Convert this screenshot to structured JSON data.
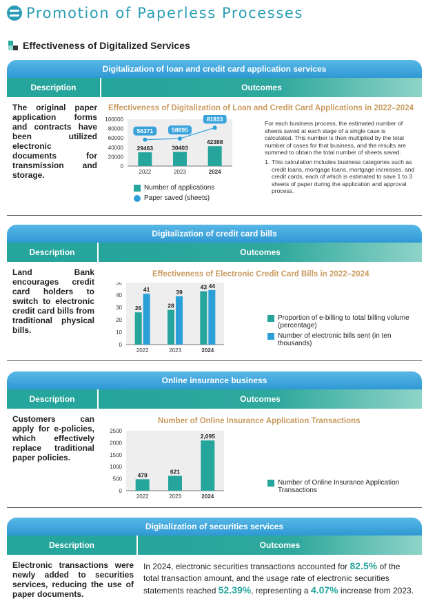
{
  "page": {
    "title": "Promotion of Paperless Processes",
    "section_heading": "Effectiveness of Digitalized Services"
  },
  "colors": {
    "teal": "#26a59c",
    "blue": "#2a9fd8",
    "tan": "#c99a5e",
    "cap_blue": "#3aa3dc"
  },
  "panels": [
    {
      "title": "Digitalization of loan and credit card application services",
      "desc_header": "Description",
      "out_header": "Outcomes",
      "description": "The original paper application forms and contracts have been utilized electronic documents for transmission and storage."
    },
    {
      "title": "Digitalization of credit card bills",
      "desc_header": "Description",
      "out_header": "Outcomes",
      "description": "Land Bank encourages credit card holders to switch to electronic credit card bills from traditional physical bills."
    },
    {
      "title": "Online insurance business",
      "desc_header": "Description",
      "out_header": "Outcomes",
      "description": "Customers can apply for e-policies, which effectively replace traditional paper policies."
    },
    {
      "title": "Digitalization of securities services",
      "desc_header": "Description",
      "out_header": "Outcomes",
      "description": "Electronic transactions were newly added to securities services, reducing the use of paper documents.",
      "outcome_parts": {
        "p1": "In 2024, electronic securities transactions accounted for ",
        "v1": "82.5%",
        "p2": " of the total transaction amount, and the usage rate of electronic securities statements reached ",
        "v2": "52.39%",
        "p3": ", representing a ",
        "v3": "4.07%",
        "p4": " increase from 2023."
      }
    }
  ],
  "notes": {
    "main": "For each business process, the estimated number of sheets saved at each stage of a single case is calculated. This number is then multiplied by the total number of cases for that business, and the results are summed to obtain the total number of sheets saved.",
    "item1_num": "1.",
    "item1": "This calculation includes business categories such as credit loans, mortgage loans, mortgage increases, and credit cards, each of which is estimated to save 1 to 3 sheets of paper during the application and approval process."
  },
  "chart_data": [
    {
      "type": "bar+line",
      "title": "Effectiveness of Digitalization of Loan and Credit Card Applications in 2022–2024",
      "categories": [
        "2022",
        "2023",
        "2024"
      ],
      "ylim": [
        0,
        100000
      ],
      "yticks": [
        "0",
        "20000",
        "40000",
        "60000",
        "80000",
        "100000"
      ],
      "series": [
        {
          "name": "Number of applications",
          "kind": "bar",
          "values": [
            29463,
            30403,
            42388
          ],
          "labels": [
            "29463",
            "30403",
            "42388"
          ]
        },
        {
          "name": "Paper saved (sheets)",
          "kind": "line",
          "values": [
            56371,
            58695,
            81833
          ],
          "labels": [
            "56371",
            "58695",
            "81833"
          ]
        }
      ]
    },
    {
      "type": "bar",
      "title": "Effectiveness of Electronic Credit Card Bills in 2022–2024",
      "categories": [
        "2022",
        "2023",
        "2024"
      ],
      "ylim": [
        0,
        50
      ],
      "yticks": [
        "0",
        "10",
        "20",
        "30",
        "40",
        "50"
      ],
      "series": [
        {
          "name": "Proportion of e-billing to total billing volume (percentage)",
          "values": [
            26,
            28,
            43
          ],
          "labels": [
            "26",
            "28",
            "43"
          ]
        },
        {
          "name": "Number of electronic bills sent (in ten thousands)",
          "values": [
            41,
            39,
            44
          ],
          "labels": [
            "41",
            "39",
            "44"
          ]
        }
      ]
    },
    {
      "type": "bar",
      "title": "Number of Online Insurance Application Transactions",
      "categories": [
        "2022",
        "2023",
        "2024"
      ],
      "ylim": [
        0,
        2500
      ],
      "yticks": [
        "0",
        "500",
        "1000",
        "1500",
        "2000",
        "2500"
      ],
      "series": [
        {
          "name": "Number of Online Insurance Application Transactions",
          "values": [
            479,
            621,
            2095
          ],
          "labels": [
            "479",
            "621",
            "2,095"
          ]
        }
      ]
    }
  ]
}
